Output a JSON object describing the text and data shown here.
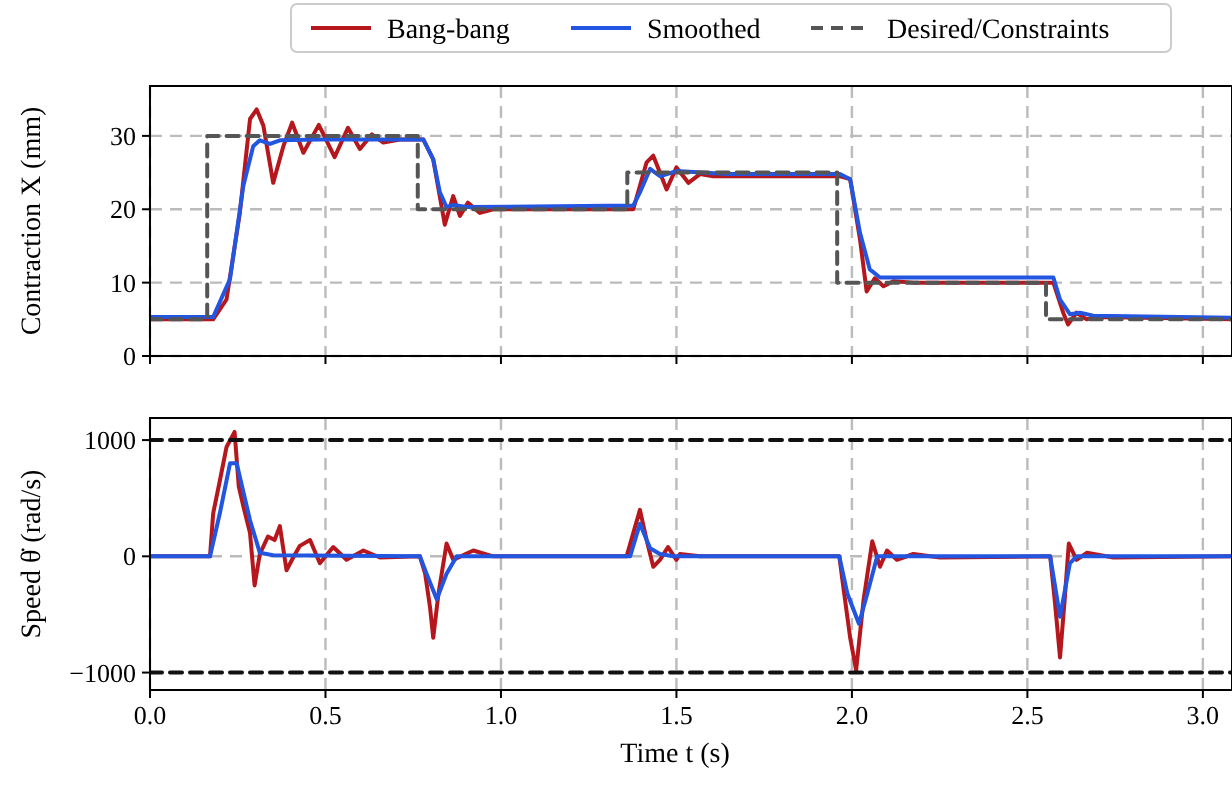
{
  "chart_data": [
    {
      "type": "line",
      "ylabel": "Contraction X (mm)",
      "xlim": [
        0,
        3.083
      ],
      "xticks": [
        {
          "value": 0,
          "label": null
        },
        {
          "value": 0.5,
          "label": null
        },
        {
          "value": 1,
          "label": null
        },
        {
          "value": 1.5,
          "label": null
        },
        {
          "value": 2,
          "label": null
        },
        {
          "value": 2.5,
          "label": null
        },
        {
          "value": 3,
          "label": null
        }
      ],
      "ylim": [
        0,
        36.8
      ],
      "yticks": [
        0,
        10,
        20,
        30
      ],
      "grid": true,
      "legend": "top",
      "tick_labels": "y",
      "series": [
        {
          "name": "Bang-bang",
          "color": "#b5171d",
          "x": [
            0,
            0.18,
            0.218,
            0.256,
            0.285,
            0.304,
            0.323,
            0.351,
            0.38,
            0.405,
            0.437,
            0.481,
            0.526,
            0.564,
            0.598,
            0.632,
            0.665,
            0.712,
            0.779,
            0.807,
            0.84,
            0.864,
            0.883,
            0.906,
            0.94,
            0.978,
            1.054,
            1.377,
            1.415,
            1.434,
            1.472,
            1.5,
            1.534,
            1.567,
            1.605,
            1.966,
            1.995,
            2.023,
            2.042,
            2.065,
            2.09,
            2.118,
            2.175,
            2.574,
            2.602,
            2.616,
            2.64,
            2.669,
            2.707,
            3.083
          ],
          "values": [
            5,
            5,
            7.7,
            19.5,
            32.3,
            33.6,
            31.4,
            23.6,
            28.6,
            31.8,
            27.7,
            31.5,
            27.1,
            31.1,
            28.2,
            30.2,
            29.1,
            29.5,
            29.5,
            26.8,
            17.9,
            21.8,
            19.1,
            20.9,
            19.5,
            20,
            20,
            20,
            26.4,
            27.3,
            22.7,
            25.7,
            23.6,
            24.8,
            24.5,
            24.5,
            24.1,
            15.9,
            8.8,
            10.6,
            9.5,
            10.2,
            10,
            10,
            5.9,
            4.3,
            5.9,
            5,
            5.3,
            5
          ]
        },
        {
          "name": "Smoothed",
          "color": "#2255e0",
          "x": [
            0,
            0.18,
            0.228,
            0.266,
            0.294,
            0.313,
            0.342,
            0.37,
            0.484,
            0.779,
            0.807,
            0.826,
            0.845,
            0.864,
            0.902,
            1.377,
            1.396,
            1.425,
            1.453,
            1.5,
            1.643,
            1.966,
            1.995,
            2.023,
            2.051,
            2.08,
            2.574,
            2.593,
            2.621,
            2.65,
            2.688,
            3.083
          ],
          "values": [
            5.3,
            5.3,
            10.5,
            23.2,
            28.6,
            29.4,
            28.9,
            29.4,
            29.5,
            29.5,
            26.8,
            22.3,
            20.3,
            20.6,
            20.3,
            20.5,
            22.3,
            25.5,
            24.5,
            25.2,
            24.8,
            24.8,
            24.1,
            16.8,
            11.8,
            10.7,
            10.7,
            7.7,
            5.7,
            5.9,
            5.5,
            5.2
          ]
        },
        {
          "name": "Desired/Constraints",
          "type": "step",
          "color": "#555555",
          "line_style": "dashed",
          "x": [
            0,
            0.163,
            0.763,
            1.36,
            1.958,
            2.553,
            3.083
          ],
          "values": [
            5,
            30,
            20,
            25,
            10,
            5,
            5
          ]
        }
      ]
    },
    {
      "type": "line",
      "xlabel": "Time t (s)",
      "ylabel": "Speed θ̇ (rad/s)",
      "xlim": [
        0,
        3.083
      ],
      "xticks": [
        {
          "value": 0,
          "label": "0.0"
        },
        {
          "value": 0.5,
          "label": "0.5"
        },
        {
          "value": 1,
          "label": "1.0"
        },
        {
          "value": 1.5,
          "label": "1.5"
        },
        {
          "value": 2,
          "label": "2.0"
        },
        {
          "value": 2.5,
          "label": "2.5"
        },
        {
          "value": 3,
          "label": "3.0"
        }
      ],
      "ylim": [
        -1150,
        1190
      ],
      "yticks": [
        {
          "value": -1000,
          "label": "−1000"
        },
        0,
        1000
      ],
      "grid": true,
      "series": [
        {
          "color": "#b5171d",
          "x": [
            0,
            0.171,
            0.18,
            0.199,
            0.218,
            0.241,
            0.253,
            0.266,
            0.285,
            0.298,
            0.313,
            0.336,
            0.355,
            0.37,
            0.389,
            0.408,
            0.427,
            0.456,
            0.484,
            0.522,
            0.56,
            0.608,
            0.655,
            0.769,
            0.784,
            0.798,
            0.807,
            0.822,
            0.845,
            0.864,
            0.921,
            0.978,
            1.358,
            1.377,
            1.396,
            1.415,
            1.434,
            1.453,
            1.476,
            1.5,
            1.51,
            1.567,
            1.964,
            1.978,
            1.995,
            2.012,
            2.033,
            2.058,
            2.08,
            2.1,
            2.128,
            2.175,
            2.251,
            2.565,
            2.578,
            2.593,
            2.606,
            2.618,
            2.64,
            2.669,
            2.745,
            3.083
          ],
          "values": [
            0,
            0,
            370,
            650,
            940,
            1070,
            600,
            430,
            200,
            -250,
            20,
            170,
            140,
            260,
            -120,
            -10,
            90,
            140,
            -60,
            80,
            -30,
            50,
            -10,
            0,
            -150,
            -440,
            -700,
            -320,
            110,
            -30,
            50,
            0,
            0,
            200,
            400,
            140,
            -90,
            -30,
            80,
            -30,
            20,
            0,
            0,
            -320,
            -700,
            -980,
            -380,
            130,
            -90,
            50,
            -30,
            20,
            -10,
            0,
            -380,
            -870,
            -380,
            110,
            -30,
            30,
            -10,
            0
          ]
        },
        {
          "color": "#2255e0",
          "x": [
            0,
            0.171,
            0.199,
            0.228,
            0.247,
            0.285,
            0.313,
            0.351,
            0.769,
            0.788,
            0.817,
            0.845,
            0.874,
            1.368,
            1.396,
            1.425,
            1.453,
            1.491,
            1.964,
            1.987,
            2.02,
            2.044,
            2.072,
            2.565,
            2.593,
            2.621,
            2.64,
            3.083
          ],
          "values": [
            0,
            0,
            370,
            800,
            800,
            310,
            30,
            10,
            0,
            -150,
            -370,
            -150,
            0,
            0,
            280,
            70,
            20,
            0,
            0,
            -320,
            -580,
            -320,
            0,
            0,
            -520,
            -60,
            0,
            0
          ]
        },
        {
          "color": "#111111",
          "line_style": "dashed",
          "x": [
            0,
            3.083
          ],
          "values": [
            1000,
            1000
          ]
        },
        {
          "color": "#111111",
          "line_style": "dashed",
          "x": [
            0,
            3.083
          ],
          "values": [
            -1000,
            -1000
          ]
        }
      ]
    }
  ]
}
